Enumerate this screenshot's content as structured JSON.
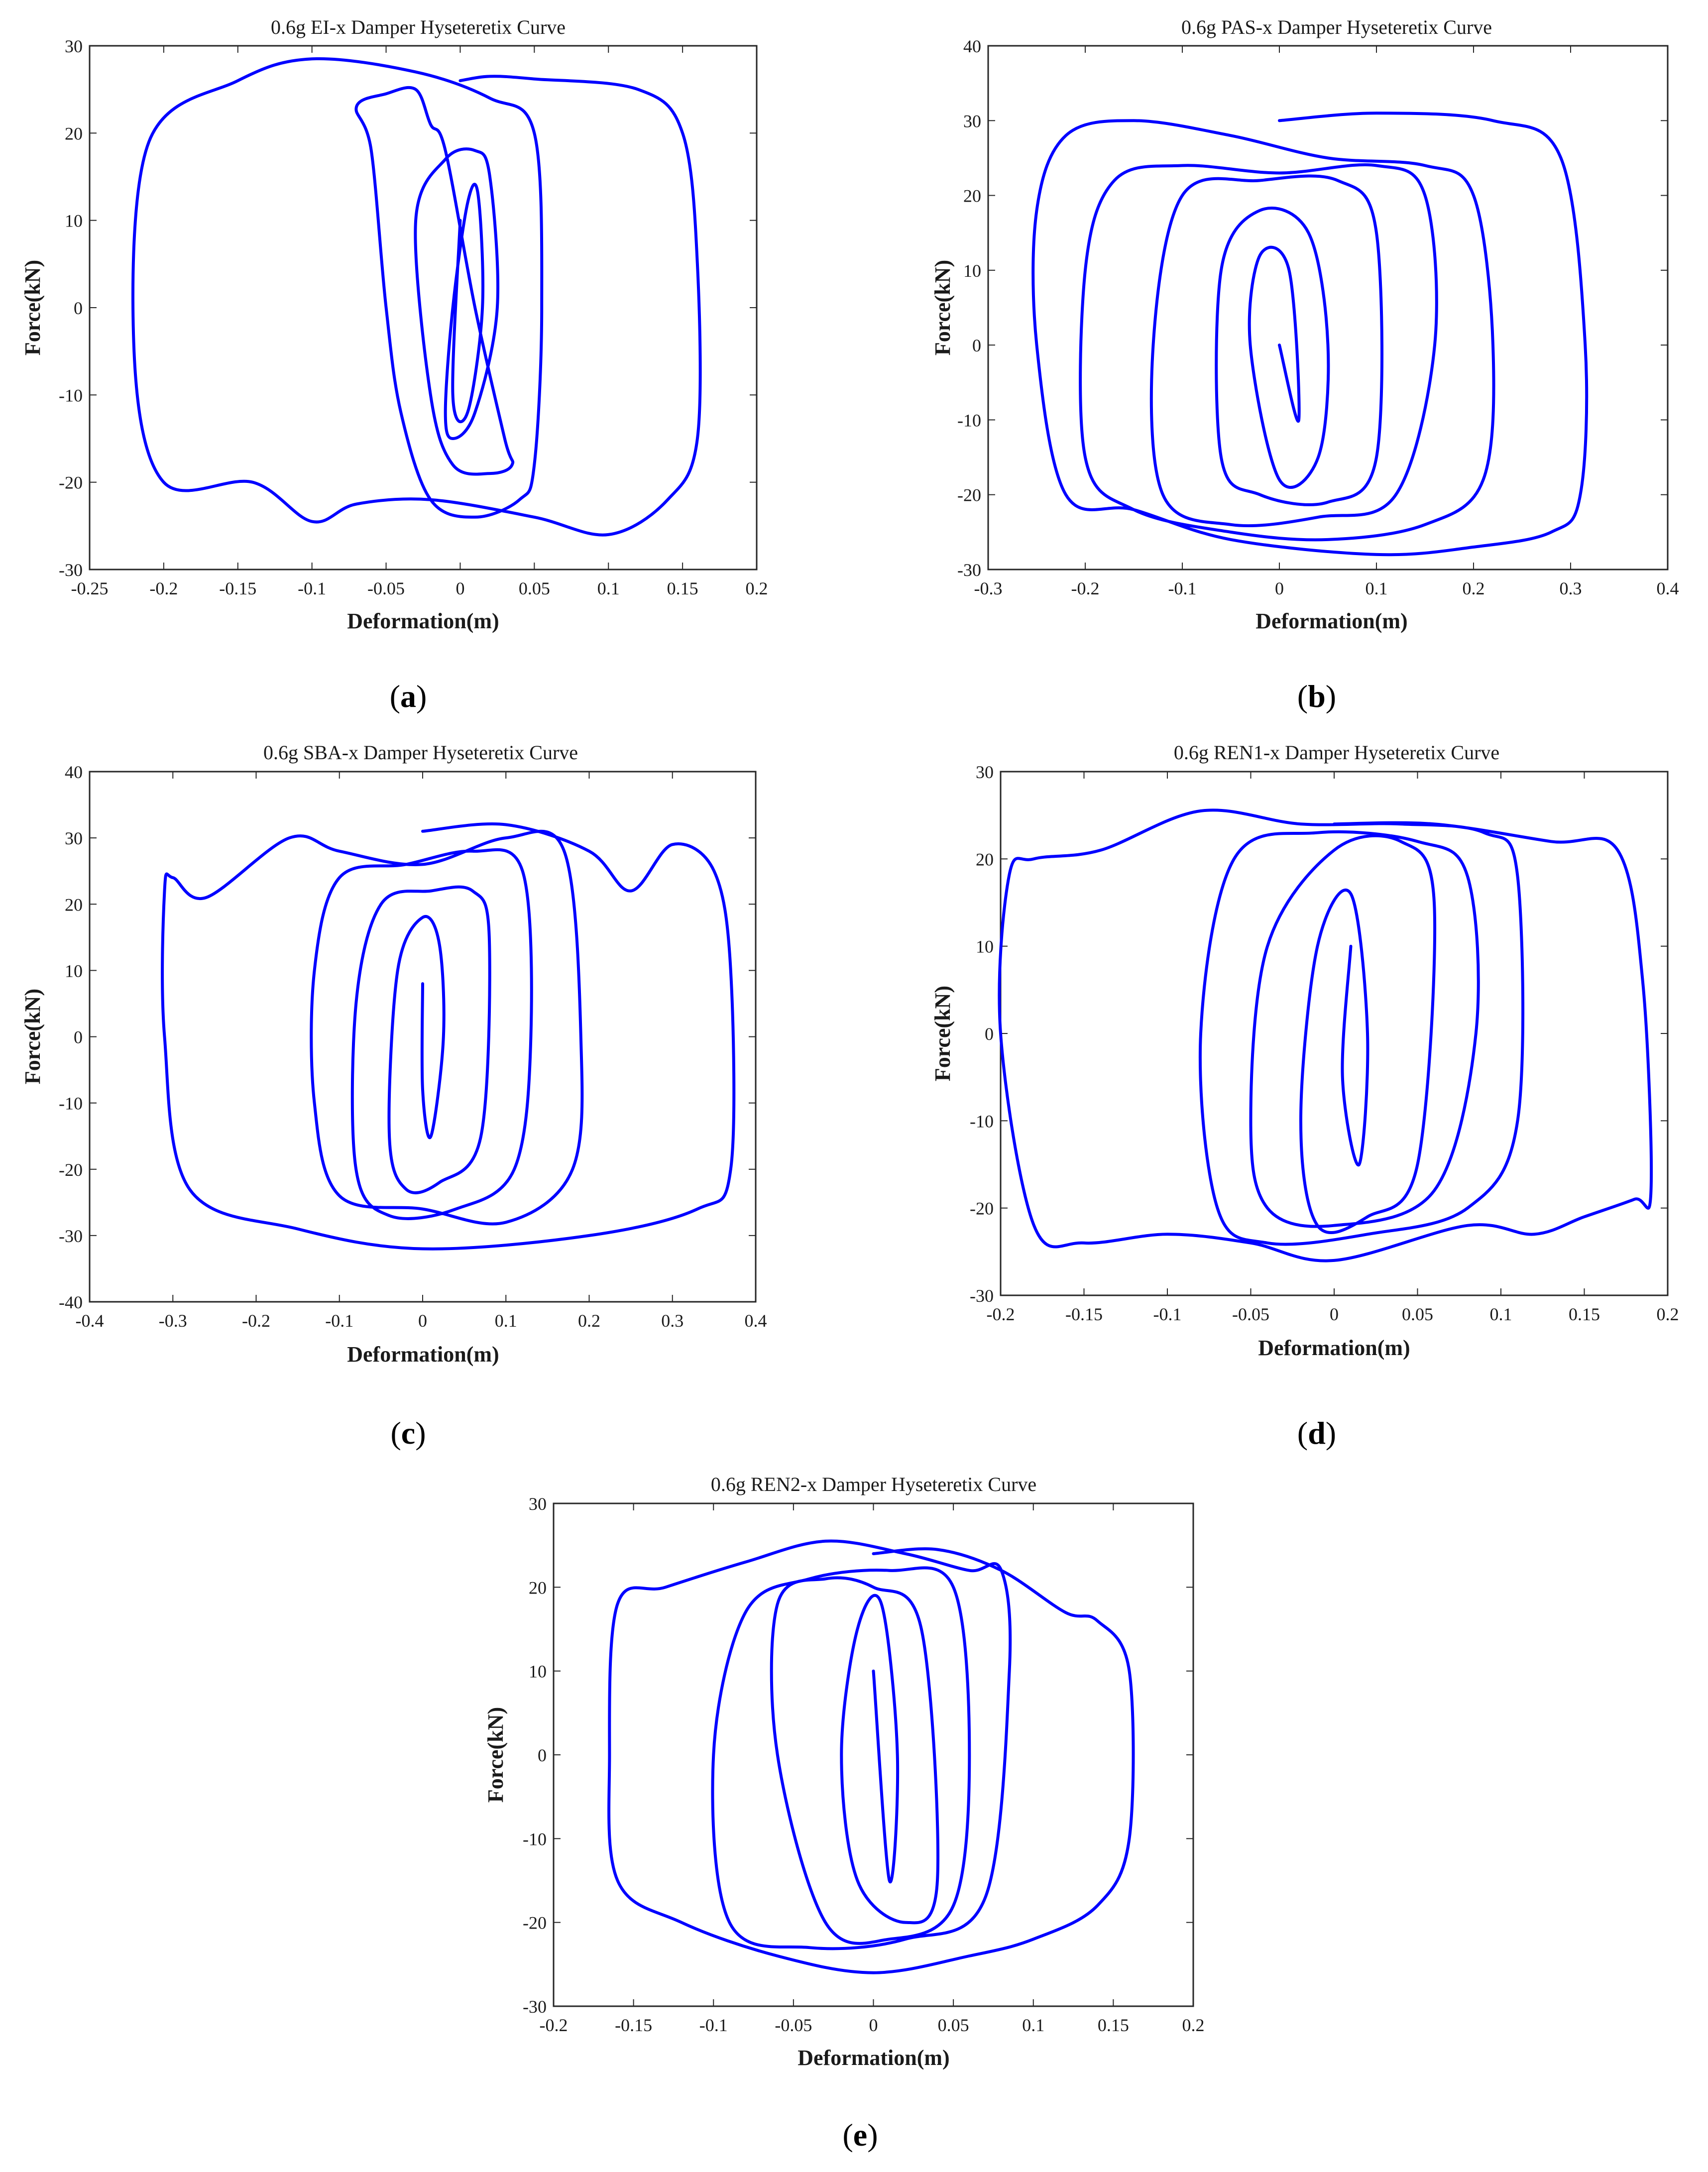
{
  "panel_labels": [
    "a",
    "b",
    "c",
    "d",
    "e"
  ],
  "style": {
    "curve_color": "#0000ff",
    "axis_color": "#262626",
    "text_color": "#1a1a1a"
  },
  "chart_data": [
    {
      "type": "line",
      "panel": "a",
      "title": "0.6g EI-x Damper Hyseteretix Curve",
      "xlabel": "Deformation(m)",
      "ylabel": "Force(kN)",
      "xlim": [
        -0.25,
        0.2
      ],
      "ylim": [
        -30,
        30
      ],
      "xticks": [
        -0.25,
        -0.2,
        -0.15,
        -0.1,
        -0.05,
        0,
        0.05,
        0.1,
        0.15,
        0.2
      ],
      "yticks": [
        -30,
        -20,
        -10,
        0,
        10,
        20,
        30
      ],
      "grid": false,
      "series": [
        {
          "name": "hysteresis",
          "x": [
            0.0,
            0.02,
            0.05,
            0.12,
            0.15,
            0.16,
            0.16,
            0.14,
            0.1,
            0.05,
            -0.02,
            -0.07,
            -0.1,
            -0.14,
            -0.2,
            -0.22,
            -0.21,
            -0.15,
            -0.1,
            -0.03,
            0.02,
            0.05,
            0.055,
            0.05,
            0.04,
            0.01,
            -0.02,
            -0.04,
            -0.05,
            -0.06,
            -0.07,
            -0.05,
            -0.03,
            -0.02,
            -0.01,
            0.01,
            0.03,
            0.035,
            0.02,
            -0.005,
            -0.02,
            -0.03,
            -0.01,
            0.01,
            0.02,
            0.025,
            0.01,
            -0.005,
            -0.01,
            -0.005,
            0.005,
            0.012,
            0.015,
            0.005,
            -0.005,
            0.0
          ],
          "y": [
            26,
            26.5,
            26.2,
            25,
            20,
            5,
            -15,
            -22,
            -26,
            -24,
            -22,
            -22.5,
            -24.5,
            -20,
            -20,
            -5,
            19,
            26,
            28.5,
            27,
            24,
            20,
            0,
            -18,
            -22,
            -24,
            -22,
            -12,
            0,
            18,
            23,
            24.5,
            25,
            21,
            18,
            0,
            -15,
            -18,
            -19,
            -18,
            -10,
            10,
            17,
            18,
            15,
            0,
            -12,
            -15,
            -12,
            0,
            12,
            13,
            0,
            -12,
            -10,
            10
          ]
        }
      ]
    },
    {
      "type": "line",
      "panel": "b",
      "title": "0.6g PAS-x Damper Hyseteretix Curve",
      "xlabel": "Deformation(m)",
      "ylabel": "Force(kN)",
      "xlim": [
        -0.3,
        0.4
      ],
      "ylim": [
        -30,
        40
      ],
      "xticks": [
        -0.3,
        -0.2,
        -0.1,
        0,
        0.1,
        0.2,
        0.3,
        0.4
      ],
      "yticks": [
        -30,
        -20,
        -10,
        0,
        10,
        20,
        30,
        40
      ],
      "grid": false,
      "series": [
        {
          "name": "hysteresis",
          "x": [
            0.0,
            0.1,
            0.22,
            0.29,
            0.315,
            0.31,
            0.28,
            0.2,
            0.1,
            -0.05,
            -0.15,
            -0.22,
            -0.25,
            -0.25,
            -0.22,
            -0.15,
            -0.05,
            0.05,
            0.15,
            0.2,
            0.22,
            0.21,
            0.15,
            0.05,
            -0.05,
            -0.15,
            -0.2,
            -0.2,
            -0.17,
            -0.1,
            0.0,
            0.1,
            0.15,
            0.16,
            0.12,
            0.04,
            -0.05,
            -0.12,
            -0.13,
            -0.1,
            -0.02,
            0.06,
            0.1,
            0.1,
            0.05,
            -0.02,
            -0.06,
            -0.06,
            -0.02,
            0.03,
            0.05,
            0.04,
            0.0,
            -0.03,
            -0.02,
            0.01,
            0.02,
            0.0
          ],
          "y": [
            30,
            31,
            30,
            25,
            0,
            -20,
            -25,
            -27,
            -28,
            -26,
            -22,
            -20,
            0,
            18,
            28,
            30,
            28,
            25,
            24,
            20,
            0,
            -18,
            -24,
            -26,
            -25,
            -22,
            -15,
            10,
            22,
            24,
            23,
            24,
            20,
            0,
            -20,
            -23,
            -24,
            -20,
            0,
            20,
            22,
            22,
            15,
            -15,
            -21,
            -20,
            -15,
            10,
            18,
            15,
            0,
            -15,
            -18,
            0,
            12,
            10,
            -10,
            0
          ]
        }
      ]
    },
    {
      "type": "line",
      "panel": "c",
      "title": "0.6g SBA-x Damper Hyseteretix Curve",
      "xlabel": "Deformation(m)",
      "ylabel": "Force(kN)",
      "xlim": [
        -0.4,
        0.4
      ],
      "ylim": [
        -40,
        40
      ],
      "xticks": [
        -0.4,
        -0.3,
        -0.2,
        -0.1,
        0,
        0.1,
        0.2,
        0.3,
        0.4
      ],
      "yticks": [
        -40,
        -30,
        -20,
        -10,
        0,
        10,
        20,
        30,
        40
      ],
      "grid": false,
      "series": [
        {
          "name": "hysteresis",
          "x": [
            0.0,
            0.1,
            0.2,
            0.25,
            0.3,
            0.35,
            0.37,
            0.37,
            0.33,
            0.2,
            0.0,
            -0.15,
            -0.28,
            -0.31,
            -0.31,
            -0.3,
            -0.26,
            -0.16,
            -0.1,
            0.0,
            0.1,
            0.17,
            0.19,
            0.18,
            0.1,
            0.0,
            -0.1,
            -0.13,
            -0.13,
            -0.1,
            -0.02,
            0.06,
            0.12,
            0.13,
            0.11,
            0.04,
            -0.04,
            -0.08,
            -0.08,
            -0.05,
            0.01,
            0.06,
            0.08,
            0.07,
            0.02,
            -0.02,
            -0.04,
            -0.03,
            0.0,
            0.02,
            0.025,
            0.01,
            0.0,
            0.0
          ],
          "y": [
            31,
            32,
            28,
            22,
            29,
            25,
            10,
            -20,
            -26,
            -30,
            -32,
            -29,
            -23,
            0,
            22,
            24,
            21,
            30,
            28,
            26,
            30,
            28,
            0,
            -20,
            -28,
            -26,
            -24,
            -10,
            10,
            24,
            26,
            28,
            25,
            0,
            -20,
            -26,
            -27,
            -20,
            5,
            20,
            22,
            22,
            15,
            -15,
            -22,
            -23,
            -15,
            10,
            18,
            14,
            0,
            -15,
            -8,
            8
          ]
        }
      ]
    },
    {
      "type": "line",
      "panel": "d",
      "title": "0.6g REN1-x Damper Hyseteretix Curve",
      "xlabel": "Deformation(m)",
      "ylabel": "Force(kN)",
      "xlim": [
        -0.2,
        0.2
      ],
      "ylim": [
        -30,
        30
      ],
      "xticks": [
        -0.2,
        -0.15,
        -0.1,
        -0.05,
        0,
        0.05,
        0.1,
        0.15,
        0.2
      ],
      "yticks": [
        -30,
        -20,
        -10,
        0,
        10,
        20,
        30
      ],
      "grid": false,
      "series": [
        {
          "name": "hysteresis",
          "x": [
            0.0,
            0.06,
            0.13,
            0.17,
            0.185,
            0.19,
            0.18,
            0.15,
            0.12,
            0.08,
            0.0,
            -0.05,
            -0.1,
            -0.15,
            -0.18,
            -0.2,
            -0.195,
            -0.18,
            -0.14,
            -0.08,
            -0.02,
            0.04,
            0.09,
            0.11,
            0.11,
            0.08,
            0.02,
            -0.04,
            -0.07,
            -0.08,
            -0.06,
            -0.01,
            0.05,
            0.08,
            0.085,
            0.06,
            0.0,
            -0.04,
            -0.05,
            -0.04,
            0.0,
            0.04,
            0.06,
            0.05,
            0.02,
            -0.01,
            -0.02,
            -0.01,
            0.01,
            0.02,
            0.015,
            0.005,
            0.01
          ],
          "y": [
            24,
            24,
            22,
            21,
            6,
            -18,
            -19,
            -21,
            -23,
            -22,
            -26,
            -24,
            -23,
            -24,
            -22,
            0,
            18,
            20,
            21,
            25.5,
            24,
            24,
            23,
            18,
            -10,
            -20,
            -23,
            -24,
            -20,
            0,
            20,
            23,
            22,
            18,
            0,
            -18,
            -22,
            -20,
            -10,
            10,
            21,
            22,
            15,
            -15,
            -21,
            -22,
            -10,
            10,
            16,
            0,
            -15,
            -5,
            10
          ]
        }
      ]
    },
    {
      "type": "line",
      "panel": "e",
      "title": "0.6g REN2-x Damper Hyseteretix Curve",
      "xlabel": "Deformation(m)",
      "ylabel": "Force(kN)",
      "xlim": [
        -0.2,
        0.2
      ],
      "ylim": [
        -30,
        30
      ],
      "xticks": [
        -0.2,
        -0.15,
        -0.1,
        -0.05,
        0,
        0.05,
        0.1,
        0.15,
        0.2
      ],
      "yticks": [
        -30,
        -20,
        -10,
        0,
        10,
        20,
        30
      ],
      "grid": false,
      "series": [
        {
          "name": "hysteresis",
          "x": [
            0.0,
            0.04,
            0.08,
            0.12,
            0.14,
            0.16,
            0.16,
            0.14,
            0.1,
            0.06,
            0.0,
            -0.06,
            -0.12,
            -0.16,
            -0.165,
            -0.16,
            -0.13,
            -0.08,
            -0.03,
            0.02,
            0.06,
            0.08,
            0.085,
            0.07,
            0.02,
            -0.04,
            -0.09,
            -0.1,
            -0.08,
            -0.04,
            0.01,
            0.05,
            0.06,
            0.05,
            0.01,
            -0.03,
            -0.06,
            -0.06,
            -0.03,
            0.0,
            0.03,
            0.04,
            0.02,
            -0.01,
            -0.02,
            -0.01,
            0.005,
            0.015,
            0.01,
            0.0
          ],
          "y": [
            24,
            24.5,
            22,
            17,
            16,
            10,
            -10,
            -18,
            -22,
            -24,
            -26,
            -24,
            -20,
            -15,
            0,
            18,
            20,
            23,
            25.5,
            24,
            22,
            22,
            10,
            -17,
            -22,
            -23,
            -20,
            0,
            17,
            21,
            22,
            20,
            0,
            -18,
            -22,
            -20,
            0,
            18,
            21,
            20,
            15,
            -15,
            -20,
            -15,
            0,
            15,
            18,
            0,
            -15,
            10
          ]
        }
      ]
    }
  ]
}
